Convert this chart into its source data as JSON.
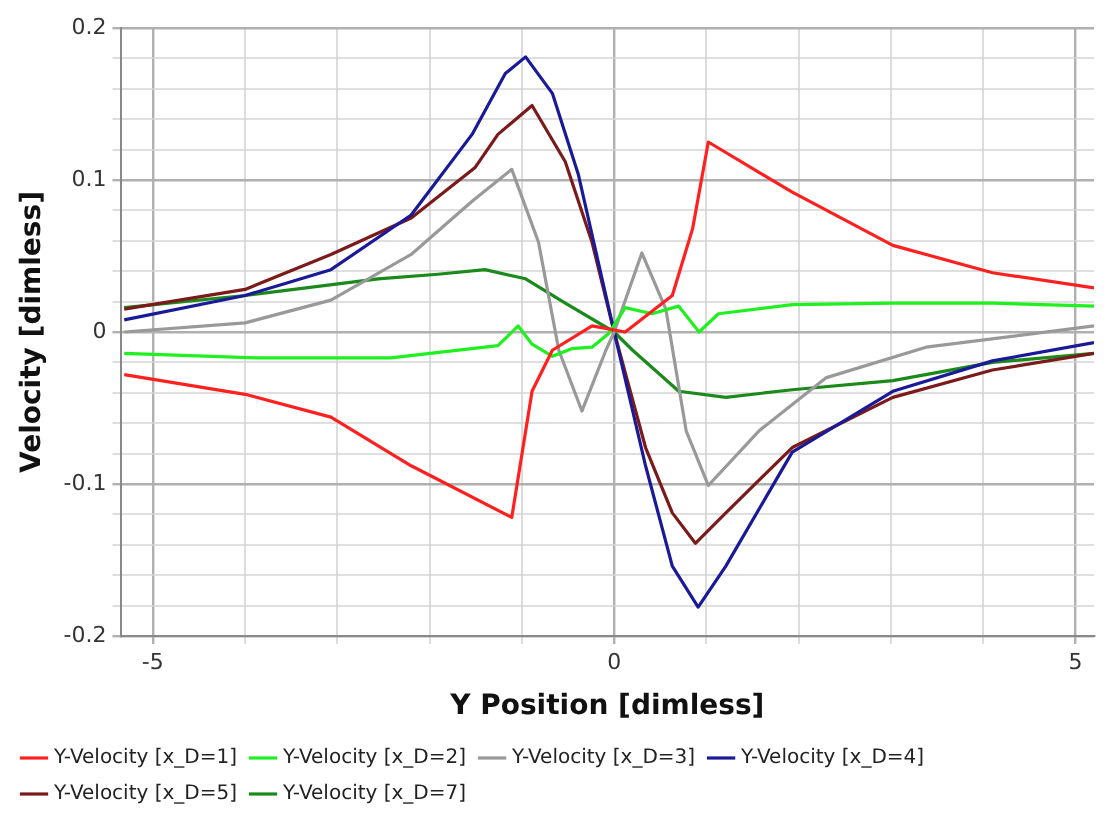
{
  "chart_data": {
    "type": "line",
    "xlabel": "Y Position [dimless]",
    "ylabel": "Velocity [dimless]",
    "xlim": [
      -5.35,
      5.2
    ],
    "ylim": [
      -0.2,
      0.2
    ],
    "xticks": [
      -5,
      {
        "value": -4,
        "label": null
      },
      {
        "value": -3,
        "label": null
      },
      {
        "value": -2,
        "label": null
      },
      {
        "value": -1,
        "label": null
      },
      0,
      {
        "value": 1,
        "label": null
      },
      {
        "value": 2,
        "label": null
      },
      {
        "value": 3,
        "label": null
      },
      {
        "value": 4,
        "label": null
      },
      5
    ],
    "yticks": [
      -0.2,
      {
        "value": -0.18,
        "label": null
      },
      {
        "value": -0.16,
        "label": null
      },
      {
        "value": -0.14,
        "label": null
      },
      {
        "value": -0.12,
        "label": null
      },
      -0.1,
      {
        "value": -0.08,
        "label": null
      },
      {
        "value": -0.06,
        "label": null
      },
      {
        "value": -0.04,
        "label": null
      },
      {
        "value": -0.02,
        "label": null
      },
      0,
      {
        "value": 0.02,
        "label": null
      },
      {
        "value": 0.04,
        "label": null
      },
      {
        "value": 0.06,
        "label": null
      },
      {
        "value": 0.08,
        "label": null
      },
      0.1,
      {
        "value": 0.12,
        "label": null
      },
      {
        "value": 0.14,
        "label": null
      },
      {
        "value": 0.16,
        "label": null
      },
      {
        "value": 0.18,
        "label": null
      },
      0.2
    ],
    "grid": true,
    "legend": "bottom",
    "marker": "none",
    "line_style": "solid",
    "series": [
      {
        "name": "Y-Velocity [x_D=1]",
        "color": "#ff2020",
        "x": [
          -5.31,
          -4.0,
          -3.07,
          -2.2,
          -1.11,
          -0.89,
          -0.67,
          -0.24,
          0.12,
          0.63,
          0.85,
          1.02,
          1.93,
          3.02,
          4.1,
          5.2
        ],
        "values": [
          -0.028,
          -0.041,
          -0.056,
          -0.088,
          -0.122,
          -0.039,
          -0.012,
          0.004,
          0.0,
          0.024,
          0.068,
          0.125,
          0.092,
          0.057,
          0.039,
          0.029
        ]
      },
      {
        "name": "Y-Velocity [x_D=2]",
        "color": "#20f020",
        "x": [
          -5.31,
          -3.87,
          -2.42,
          -1.26,
          -1.04,
          -0.89,
          -0.67,
          -0.46,
          -0.24,
          -0.06,
          0.12,
          0.41,
          0.7,
          0.92,
          1.13,
          1.93,
          3.02,
          4.1,
          5.2
        ],
        "values": [
          -0.014,
          -0.017,
          -0.017,
          -0.009,
          0.004,
          -0.008,
          -0.016,
          -0.011,
          -0.01,
          -0.001,
          0.016,
          0.012,
          0.017,
          0.0,
          0.012,
          0.018,
          0.019,
          0.019,
          0.017
        ]
      },
      {
        "name": "Y-Velocity [x_D=3]",
        "color": "#999999",
        "x": [
          -5.31,
          -4.0,
          -3.07,
          -2.2,
          -1.54,
          -1.11,
          -0.82,
          -0.6,
          -0.35,
          -0.09,
          0.0,
          0.3,
          0.56,
          0.78,
          1.02,
          1.57,
          2.3,
          3.38,
          5.2
        ],
        "values": [
          0.0,
          0.006,
          0.021,
          0.051,
          0.086,
          0.107,
          0.059,
          -0.012,
          -0.052,
          -0.012,
          0.0,
          0.052,
          0.015,
          -0.065,
          -0.101,
          -0.065,
          -0.03,
          -0.01,
          0.004
        ]
      },
      {
        "name": "Y-Velocity [x_D=4]",
        "color": "#1a1a99",
        "x": [
          -5.31,
          -4.0,
          -3.07,
          -2.2,
          -1.54,
          -1.18,
          -0.96,
          -0.67,
          -0.39,
          -0.09,
          0.0,
          0.34,
          0.63,
          0.91,
          1.21,
          1.93,
          3.02,
          4.1,
          5.2
        ],
        "values": [
          0.008,
          0.024,
          0.041,
          0.077,
          0.13,
          0.17,
          0.181,
          0.157,
          0.104,
          0.024,
          0.0,
          -0.088,
          -0.154,
          -0.181,
          -0.154,
          -0.079,
          -0.039,
          -0.019,
          -0.007
        ]
      },
      {
        "name": "Y-Velocity [x_D=5]",
        "color": "#7a1a1a",
        "x": [
          -5.31,
          -4.0,
          -3.07,
          -2.2,
          -1.51,
          -1.26,
          -0.89,
          -0.53,
          -0.24,
          0.0,
          0.34,
          0.63,
          0.88,
          1.21,
          1.93,
          3.02,
          4.1,
          5.2
        ],
        "values": [
          0.015,
          0.028,
          0.051,
          0.075,
          0.108,
          0.13,
          0.149,
          0.112,
          0.059,
          0.0,
          -0.076,
          -0.119,
          -0.139,
          -0.119,
          -0.076,
          -0.043,
          -0.025,
          -0.014
        ]
      },
      {
        "name": "Y-Velocity [x_D=7]",
        "color": "#1a8a1a",
        "x": [
          -5.31,
          -4.0,
          -2.56,
          -1.91,
          -1.4,
          -0.96,
          -0.53,
          0.0,
          0.2,
          0.7,
          1.21,
          1.93,
          3.02,
          4.1,
          5.2
        ],
        "values": [
          0.016,
          0.024,
          0.035,
          0.038,
          0.041,
          0.035,
          0.019,
          0.0,
          -0.012,
          -0.039,
          -0.043,
          -0.038,
          -0.032,
          -0.02,
          -0.014
        ]
      }
    ]
  }
}
